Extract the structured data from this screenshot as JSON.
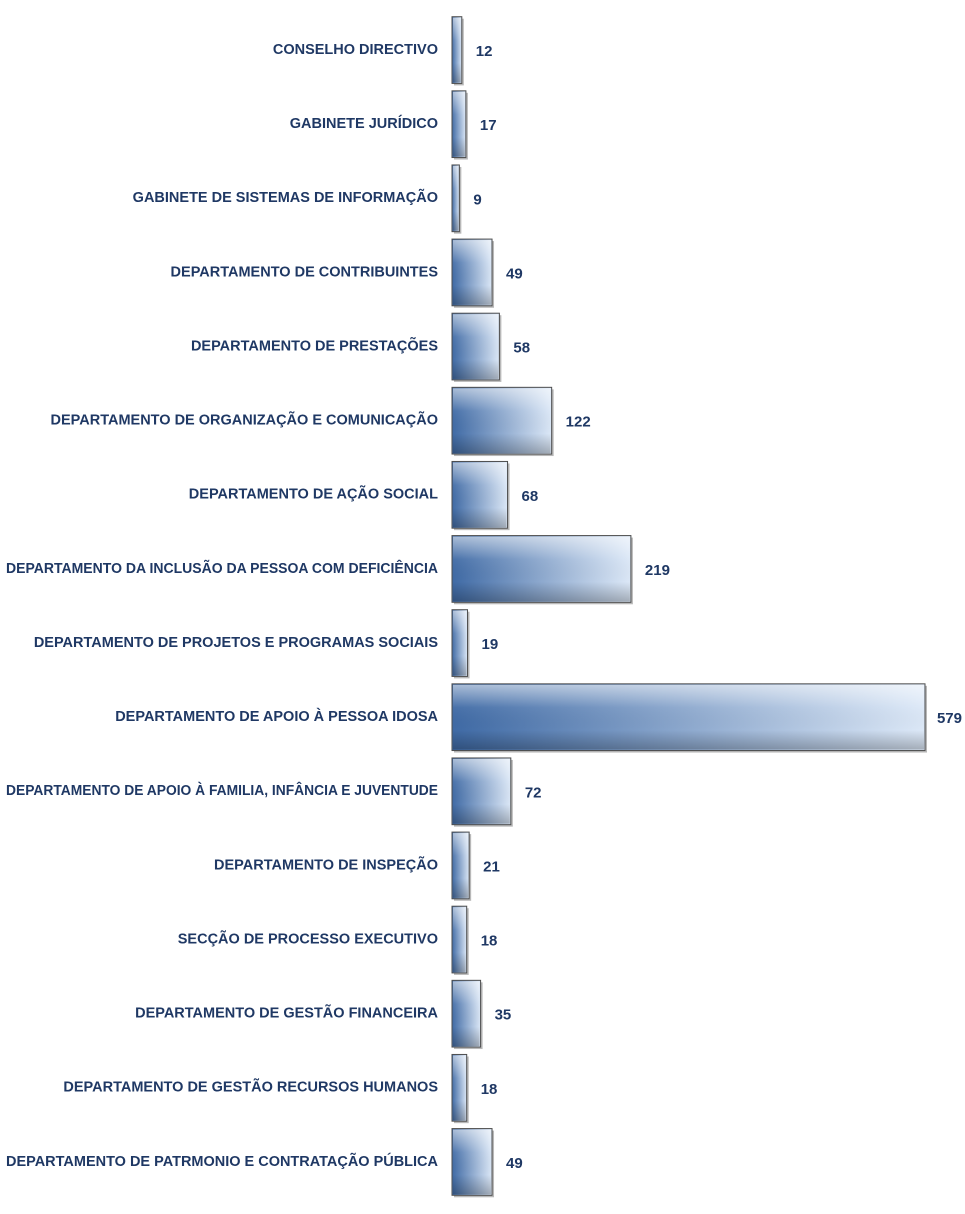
{
  "chart_data": {
    "type": "bar",
    "orientation": "horizontal",
    "title": "",
    "xlabel": "",
    "ylabel": "",
    "grid": false,
    "legend": "none",
    "categories": [
      "CONSELHO DIRECTIVO",
      "GABINETE JURÍDICO",
      "GABINETE DE SISTEMAS DE INFORMAÇÃO",
      "DEPARTAMENTO DE CONTRIBUINTES",
      "DEPARTAMENTO DE PRESTAÇÕES",
      "DEPARTAMENTO DE ORGANIZAÇÃO E COMUNICAÇÃO",
      "DEPARTAMENTO DE AÇÃO SOCIAL",
      "DEPARTAMENTO DA INCLUSÃO DA PESSOA COM DEFICIÊNCIA",
      "DEPARTAMENTO DE PROJETOS E PROGRAMAS SOCIAIS",
      "DEPARTAMENTO DE APOIO À PESSOA IDOSA",
      "DEPARTAMENTO DE APOIO À FAMILIA, INFÂNCIA E JUVENTUDE",
      "DEPARTAMENTO DE INSPEÇÃO",
      "SECÇÃO DE PROCESSO EXECUTIVO",
      "DEPARTAMENTO DE GESTÃO FINANCEIRA",
      "DEPARTAMENTO DE GESTÃO RECURSOS HUMANOS",
      "DEPARTAMENTO DE PATRMONIO E CONTRATAÇÃO PÚBLICA"
    ],
    "values": [
      12,
      17,
      9,
      49,
      58,
      122,
      68,
      219,
      19,
      579,
      72,
      21,
      18,
      35,
      18,
      49
    ],
    "xlim": [
      0,
      579
    ],
    "colors": {
      "bar_dark": "#3f6aa5",
      "bar_light": "#dce8f7",
      "bar_edge": "#4d4d4d",
      "text": "#1f3864"
    }
  }
}
